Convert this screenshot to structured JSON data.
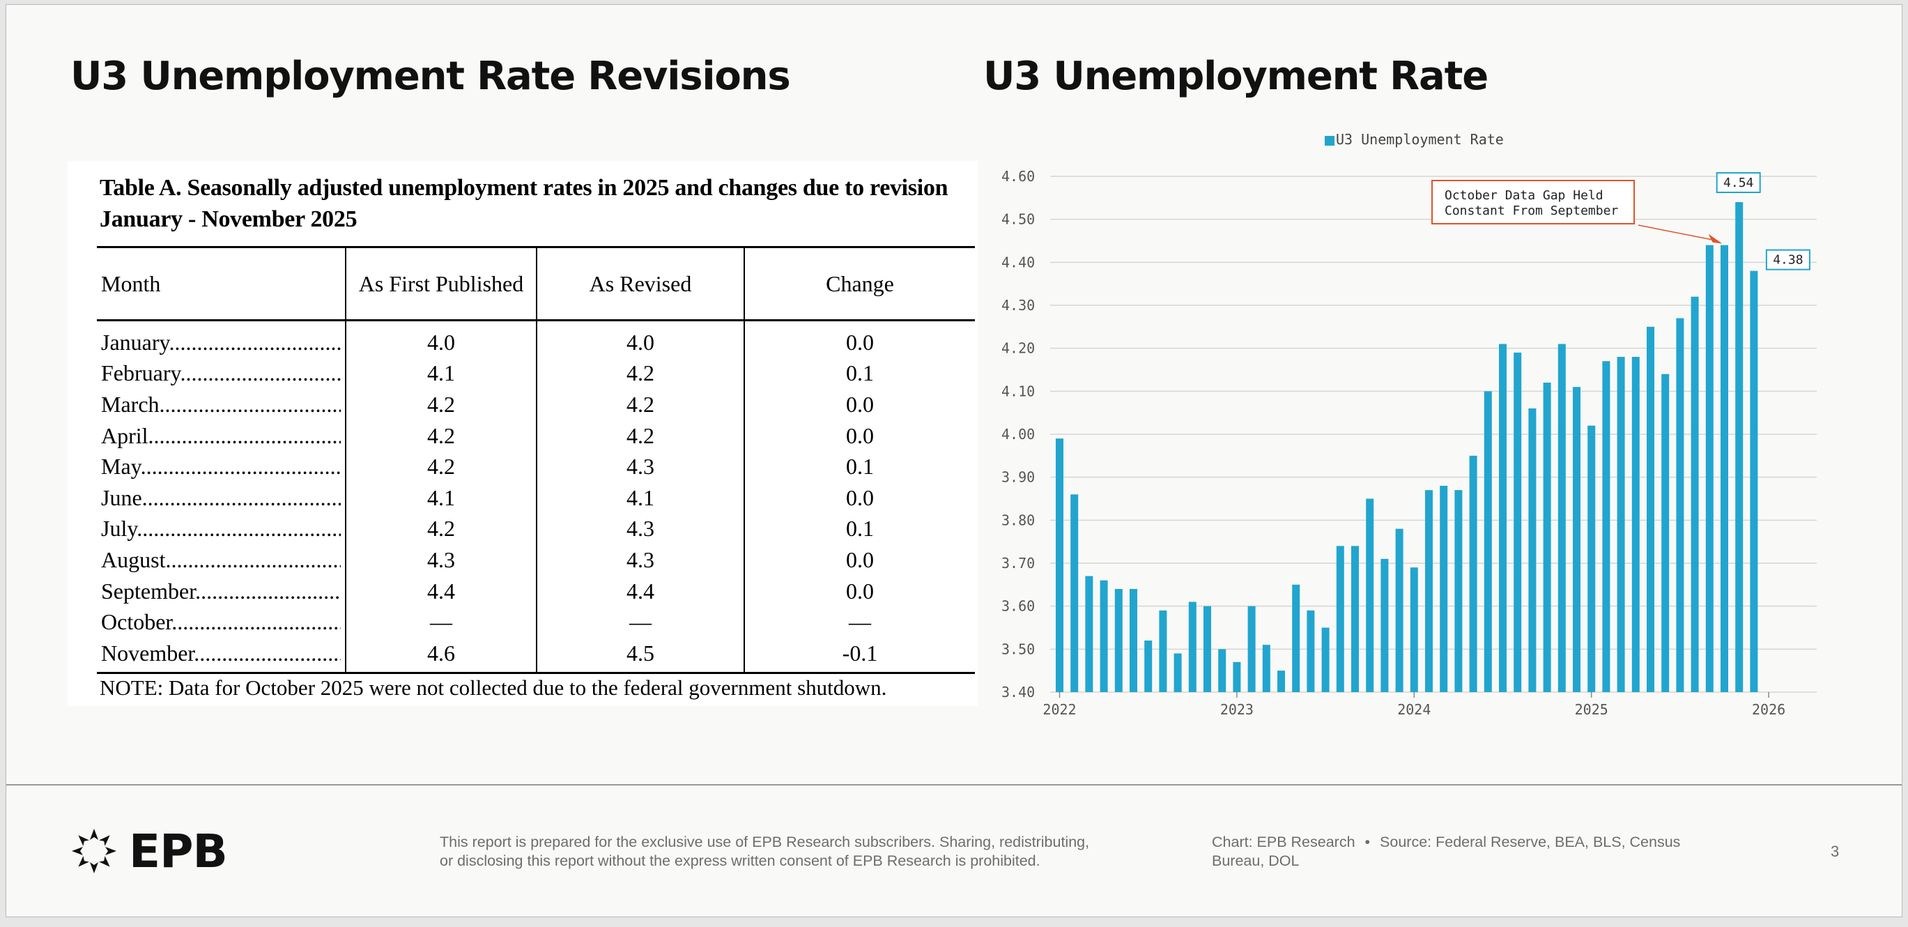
{
  "left_heading": "U3 Unemployment Rate Revisions",
  "right_heading": "U3 Unemployment Rate",
  "table": {
    "caption_line1": "Table A. Seasonally adjusted unemployment rates in 2025 and changes due to revision",
    "caption_line2": "January - November 2025",
    "headers": [
      "Month",
      "As First Published",
      "As Revised",
      "Change"
    ],
    "rows": [
      [
        "January",
        "4.0",
        "4.0",
        "0.0"
      ],
      [
        "February",
        "4.1",
        "4.2",
        "0.1"
      ],
      [
        "March",
        "4.2",
        "4.2",
        "0.0"
      ],
      [
        "April",
        "4.2",
        "4.2",
        "0.0"
      ],
      [
        "May",
        "4.2",
        "4.3",
        "0.1"
      ],
      [
        "June",
        "4.1",
        "4.1",
        "0.0"
      ],
      [
        "July",
        "4.2",
        "4.3",
        "0.1"
      ],
      [
        "August",
        "4.3",
        "4.3",
        "0.0"
      ],
      [
        "September",
        "4.4",
        "4.4",
        "0.0"
      ],
      [
        "October",
        "—",
        "—",
        "—"
      ],
      [
        "November",
        "4.6",
        "4.5",
        "-0.1"
      ]
    ],
    "note": "NOTE: Data for October 2025 were not collected due to the federal government shutdown."
  },
  "chart_data": {
    "type": "bar",
    "title": "U3 Unemployment Rate",
    "series": [
      {
        "name": "U3 Unemployment Rate",
        "start": "2022-01",
        "values": [
          3.99,
          3.86,
          3.67,
          3.66,
          3.64,
          3.64,
          3.52,
          3.59,
          3.49,
          3.61,
          3.6,
          3.5,
          3.47,
          3.6,
          3.51,
          3.45,
          3.65,
          3.59,
          3.55,
          3.74,
          3.74,
          3.85,
          3.71,
          3.78,
          3.69,
          3.87,
          3.88,
          3.87,
          3.95,
          4.1,
          4.21,
          4.19,
          4.06,
          4.12,
          4.21,
          4.11,
          4.02,
          4.17,
          4.18,
          4.18,
          4.25,
          4.14,
          4.27,
          4.32,
          4.44,
          4.44,
          4.54,
          4.38
        ]
      }
    ],
    "x_ticks": [
      "2022",
      "2023",
      "2024",
      "2025",
      "2026"
    ],
    "y_ticks": [
      "4.60",
      "4.50",
      "4.40",
      "4.30",
      "4.20",
      "4.10",
      "4.00",
      "3.90",
      "3.80",
      "3.70",
      "3.60",
      "3.50",
      "3.40"
    ],
    "ylim": [
      3.4,
      4.6
    ],
    "legend": "top-center",
    "color": "#21a5cf",
    "annotation_color": "#e0532a",
    "annotation_line1": "October Data Gap Held",
    "annotation_line2": "Constant From September",
    "value_labels": [
      "4.54",
      "4.38"
    ]
  },
  "footer": {
    "logo_text": "EPB",
    "disclaimer_line1": "This report is prepared for the exclusive use of EPB Research subscribers. Sharing, redistributing,",
    "disclaimer_line2": "or disclosing this report without the express written consent of EPB Research is prohibited.",
    "chart_credit": "Chart: EPB Research",
    "separator": "•",
    "source_line1": "Source: Federal Reserve, BEA, BLS, Census",
    "source_line2": "Bureau, DOL",
    "page_number": "3"
  }
}
